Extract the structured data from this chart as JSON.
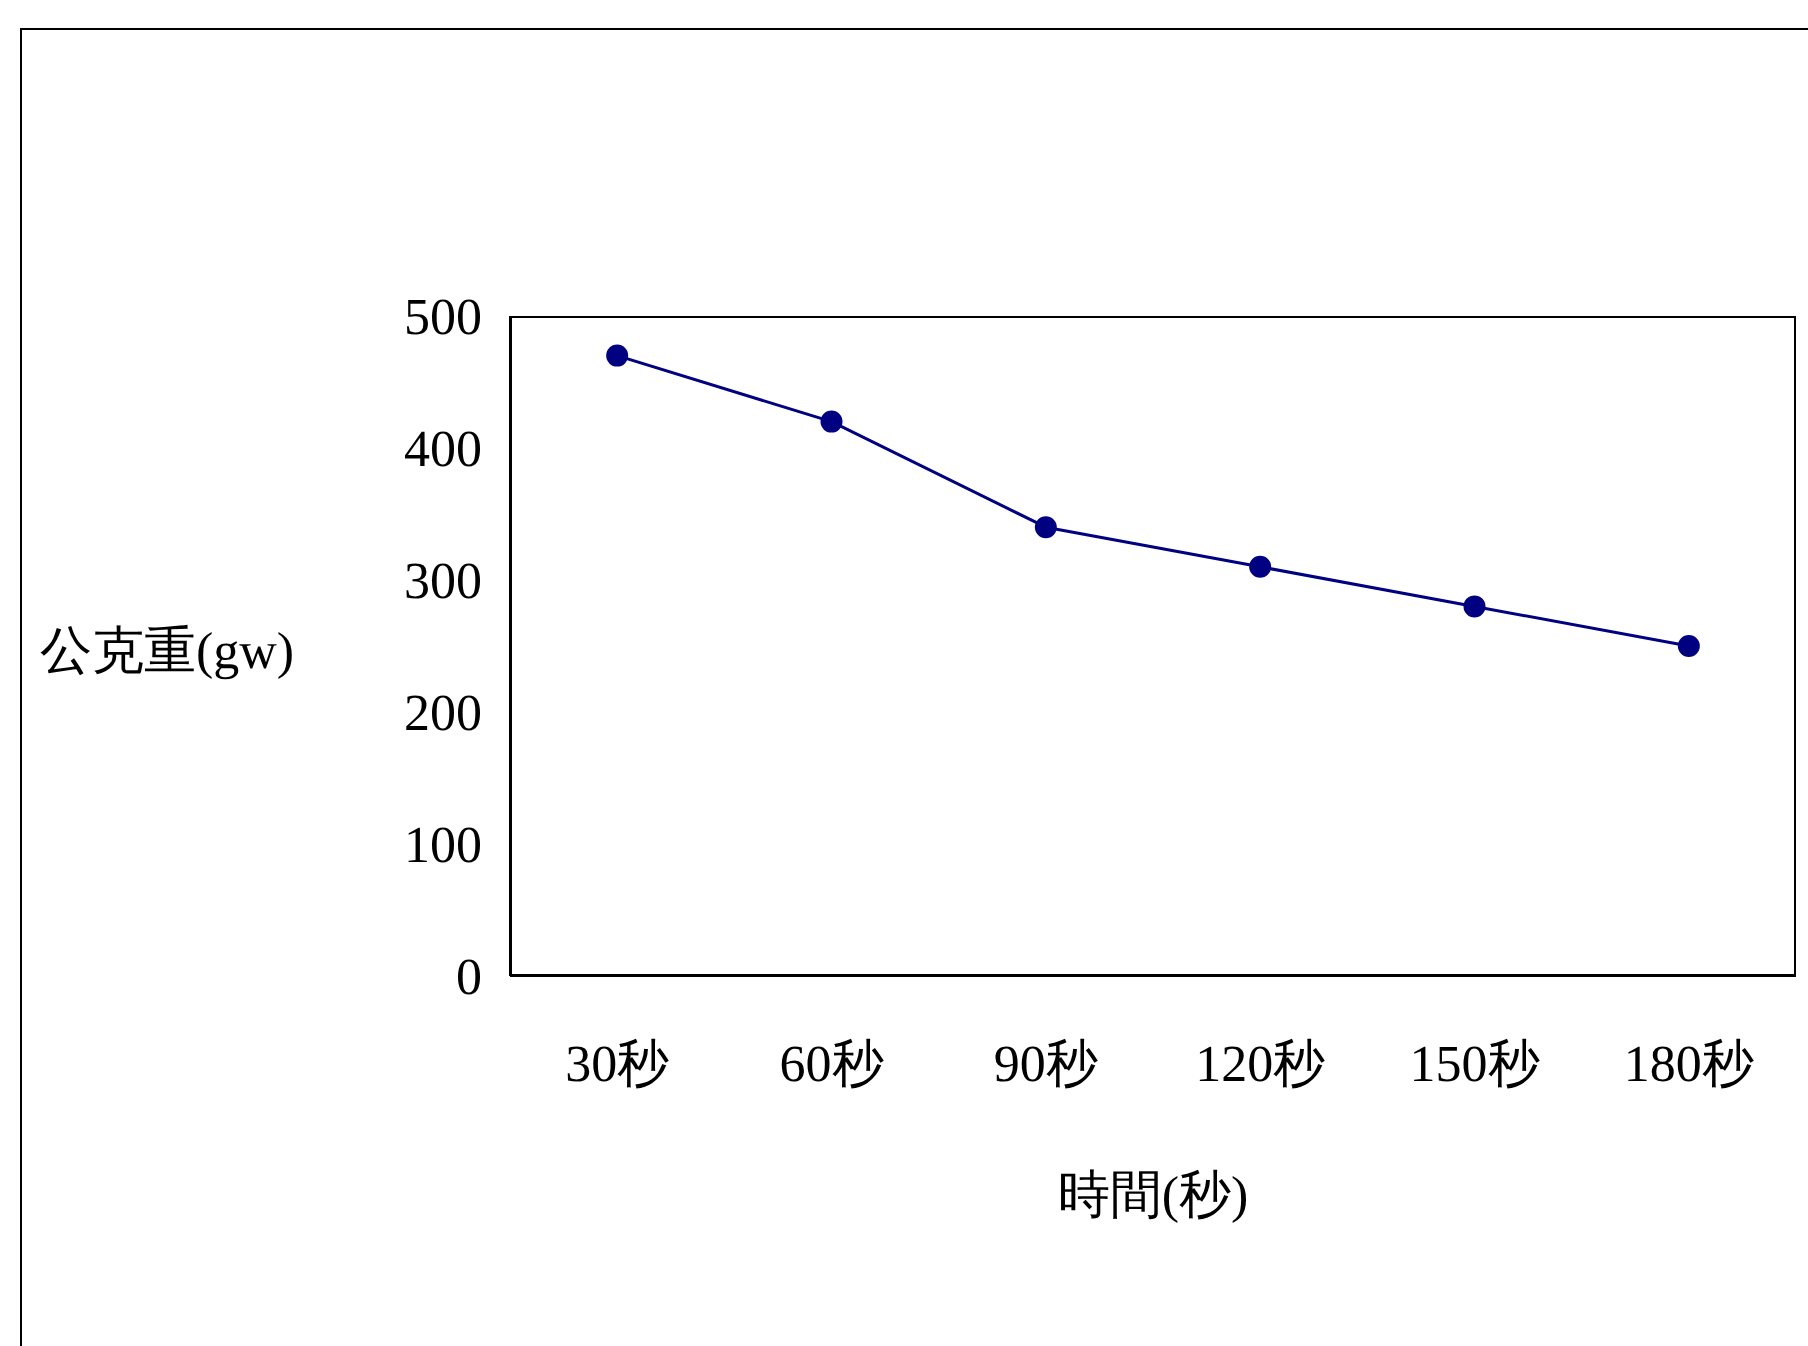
{
  "chart_data": {
    "type": "line",
    "xlabel": "時間(秒)",
    "ylabel": "公克重(gw)",
    "categories": [
      "30秒",
      "60秒",
      "90秒",
      "120秒",
      "150秒",
      "180秒"
    ],
    "series": [
      {
        "color": "#000080",
        "values": [
          470,
          420,
          340,
          310,
          280,
          250
        ]
      }
    ],
    "ylim": [
      0,
      500
    ],
    "yticks": [
      0,
      100,
      200,
      300,
      400,
      500
    ],
    "grid": false,
    "legend": false,
    "marker": "circle",
    "line_style": "solid"
  }
}
